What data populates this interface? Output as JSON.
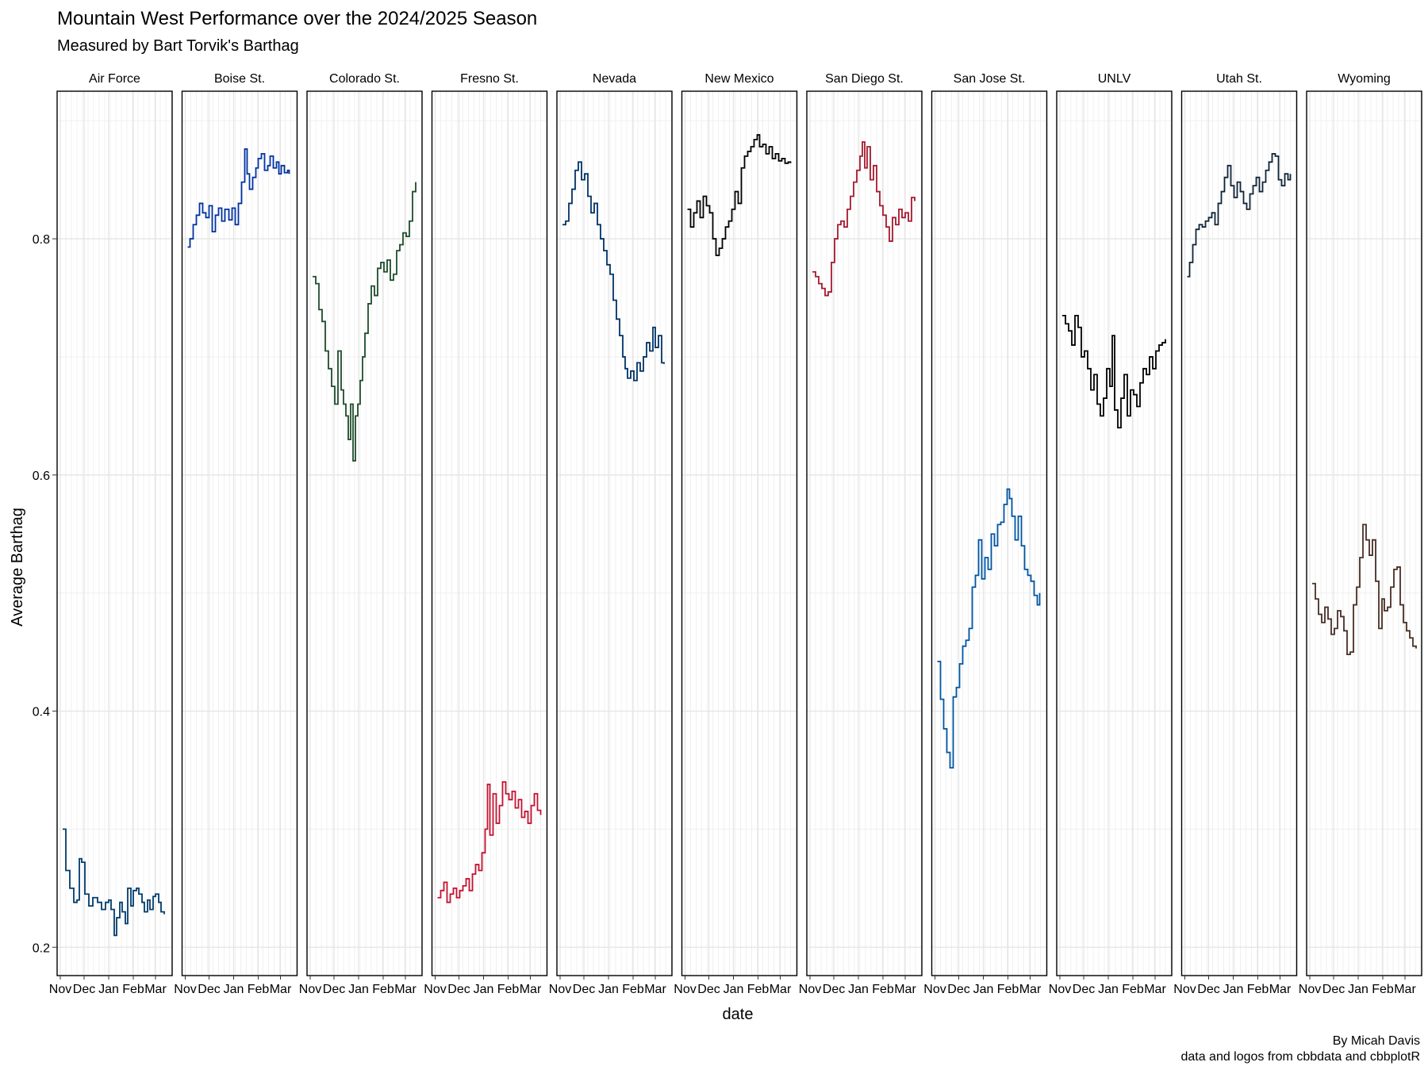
{
  "chart_data": {
    "type": "line",
    "title": "Mountain West Performance over the 2024/2025 Season",
    "subtitle": "Measured by Bart Torvik's Barthag",
    "xlabel": "date",
    "ylabel": "Average Barthag",
    "caption": [
      "By Micah Davis",
      "data and logos from cbbdata and cbbplotR"
    ],
    "ylim": [
      0.176,
      0.925
    ],
    "yticks": [
      0.2,
      0.4,
      0.6,
      0.8
    ],
    "ytick_labels": [
      "0.2",
      "0.4",
      "0.6",
      "0.8"
    ],
    "xlim": [
      "2024-10-28",
      "2025-03-22"
    ],
    "xticks": [
      "2024-11-01",
      "2024-12-01",
      "2025-01-01",
      "2025-02-01",
      "2025-03-01"
    ],
    "xtick_labels": [
      "Nov",
      "Dec",
      "Jan",
      "Feb",
      "Mar"
    ],
    "grid": true,
    "legend": "none",
    "facets": [
      {
        "name": "Air Force",
        "color": "#003C6C",
        "x": [
          "2024-11-04",
          "2024-11-08",
          "2024-11-13",
          "2024-11-18",
          "2024-11-22",
          "2024-11-25",
          "2024-11-28",
          "2024-12-02",
          "2024-12-07",
          "2024-12-12",
          "2024-12-18",
          "2024-12-23",
          "2024-12-28",
          "2025-01-01",
          "2025-01-04",
          "2025-01-08",
          "2025-01-11",
          "2025-01-15",
          "2025-01-18",
          "2025-01-22",
          "2025-01-25",
          "2025-01-29",
          "2025-02-01",
          "2025-02-05",
          "2025-02-08",
          "2025-02-12",
          "2025-02-15",
          "2025-02-19",
          "2025-02-22",
          "2025-02-26",
          "2025-03-01",
          "2025-03-05",
          "2025-03-08",
          "2025-03-12"
        ],
        "values": [
          0.3,
          0.265,
          0.25,
          0.238,
          0.24,
          0.275,
          0.272,
          0.245,
          0.235,
          0.242,
          0.238,
          0.232,
          0.238,
          0.24,
          0.232,
          0.21,
          0.225,
          0.238,
          0.23,
          0.22,
          0.25,
          0.235,
          0.248,
          0.25,
          0.245,
          0.238,
          0.23,
          0.24,
          0.232,
          0.243,
          0.245,
          0.238,
          0.23,
          0.228
        ]
      },
      {
        "name": "Boise St.",
        "color": "#0033A0",
        "x": [
          "2024-11-04",
          "2024-11-07",
          "2024-11-11",
          "2024-11-15",
          "2024-11-19",
          "2024-11-23",
          "2024-11-27",
          "2024-12-01",
          "2024-12-05",
          "2024-12-09",
          "2024-12-13",
          "2024-12-17",
          "2024-12-21",
          "2024-12-26",
          "2024-12-30",
          "2025-01-03",
          "2025-01-07",
          "2025-01-11",
          "2025-01-15",
          "2025-01-18",
          "2025-01-21",
          "2025-01-25",
          "2025-01-29",
          "2025-02-01",
          "2025-02-05",
          "2025-02-09",
          "2025-02-13",
          "2025-02-16",
          "2025-02-20",
          "2025-02-24",
          "2025-02-27",
          "2025-03-02",
          "2025-03-06",
          "2025-03-10",
          "2025-03-12"
        ],
        "values": [
          0.793,
          0.8,
          0.812,
          0.82,
          0.83,
          0.822,
          0.818,
          0.828,
          0.806,
          0.82,
          0.826,
          0.815,
          0.825,
          0.816,
          0.826,
          0.812,
          0.83,
          0.848,
          0.876,
          0.855,
          0.842,
          0.852,
          0.86,
          0.868,
          0.872,
          0.858,
          0.862,
          0.87,
          0.86,
          0.865,
          0.855,
          0.862,
          0.856,
          0.858,
          0.855
        ]
      },
      {
        "name": "Colorado St.",
        "color": "#1E4D2B",
        "x": [
          "2024-11-04",
          "2024-11-08",
          "2024-11-12",
          "2024-11-16",
          "2024-11-20",
          "2024-11-24",
          "2024-11-28",
          "2024-12-02",
          "2024-12-06",
          "2024-12-10",
          "2024-12-13",
          "2024-12-16",
          "2024-12-19",
          "2024-12-22",
          "2024-12-25",
          "2024-12-28",
          "2024-12-31",
          "2025-01-03",
          "2025-01-06",
          "2025-01-09",
          "2025-01-13",
          "2025-01-17",
          "2025-01-21",
          "2025-01-25",
          "2025-01-29",
          "2025-02-02",
          "2025-02-06",
          "2025-02-10",
          "2025-02-14",
          "2025-02-18",
          "2025-02-22",
          "2025-02-26",
          "2025-03-02",
          "2025-03-06",
          "2025-03-10",
          "2025-03-14"
        ],
        "values": [
          0.768,
          0.762,
          0.74,
          0.73,
          0.705,
          0.69,
          0.675,
          0.66,
          0.705,
          0.672,
          0.66,
          0.65,
          0.63,
          0.66,
          0.612,
          0.65,
          0.66,
          0.68,
          0.7,
          0.72,
          0.745,
          0.76,
          0.752,
          0.775,
          0.78,
          0.772,
          0.782,
          0.765,
          0.77,
          0.79,
          0.795,
          0.805,
          0.802,
          0.815,
          0.84,
          0.848
        ]
      },
      {
        "name": "Fresno St.",
        "color": "#C41230",
        "x": [
          "2024-11-04",
          "2024-11-08",
          "2024-11-12",
          "2024-11-16",
          "2024-11-20",
          "2024-11-24",
          "2024-11-28",
          "2024-12-02",
          "2024-12-06",
          "2024-12-10",
          "2024-12-14",
          "2024-12-18",
          "2024-12-22",
          "2024-12-26",
          "2024-12-30",
          "2025-01-03",
          "2025-01-06",
          "2025-01-09",
          "2025-01-13",
          "2025-01-17",
          "2025-01-21",
          "2025-01-25",
          "2025-01-29",
          "2025-02-02",
          "2025-02-06",
          "2025-02-10",
          "2025-02-14",
          "2025-02-18",
          "2025-02-22",
          "2025-02-26",
          "2025-03-02",
          "2025-03-06",
          "2025-03-10",
          "2025-03-14"
        ],
        "values": [
          0.242,
          0.248,
          0.255,
          0.238,
          0.245,
          0.25,
          0.242,
          0.248,
          0.252,
          0.258,
          0.248,
          0.262,
          0.27,
          0.265,
          0.28,
          0.3,
          0.338,
          0.295,
          0.33,
          0.305,
          0.32,
          0.34,
          0.33,
          0.325,
          0.332,
          0.318,
          0.325,
          0.31,
          0.315,
          0.305,
          0.32,
          0.33,
          0.316,
          0.312
        ]
      },
      {
        "name": "Nevada",
        "color": "#003366",
        "x": [
          "2024-11-04",
          "2024-11-08",
          "2024-11-12",
          "2024-11-16",
          "2024-11-20",
          "2024-11-24",
          "2024-11-28",
          "2024-12-02",
          "2024-12-06",
          "2024-12-10",
          "2024-12-14",
          "2024-12-18",
          "2024-12-22",
          "2024-12-26",
          "2024-12-30",
          "2025-01-03",
          "2025-01-07",
          "2025-01-11",
          "2025-01-15",
          "2025-01-19",
          "2025-01-22",
          "2025-01-25",
          "2025-01-29",
          "2025-02-02",
          "2025-02-06",
          "2025-02-10",
          "2025-02-14",
          "2025-02-18",
          "2025-02-22",
          "2025-02-26",
          "2025-03-01",
          "2025-03-05",
          "2025-03-09",
          "2025-03-12"
        ],
        "values": [
          0.812,
          0.815,
          0.83,
          0.842,
          0.858,
          0.865,
          0.85,
          0.855,
          0.836,
          0.822,
          0.83,
          0.812,
          0.8,
          0.79,
          0.778,
          0.77,
          0.748,
          0.732,
          0.718,
          0.7,
          0.69,
          0.682,
          0.688,
          0.68,
          0.695,
          0.688,
          0.7,
          0.712,
          0.705,
          0.725,
          0.708,
          0.718,
          0.695,
          0.694
        ]
      },
      {
        "name": "New Mexico",
        "color": "#000000",
        "x": [
          "2024-11-04",
          "2024-11-08",
          "2024-11-12",
          "2024-11-16",
          "2024-11-20",
          "2024-11-24",
          "2024-11-28",
          "2024-12-02",
          "2024-12-06",
          "2024-12-10",
          "2024-12-14",
          "2024-12-18",
          "2024-12-22",
          "2024-12-26",
          "2024-12-30",
          "2025-01-03",
          "2025-01-07",
          "2025-01-11",
          "2025-01-15",
          "2025-01-19",
          "2025-01-23",
          "2025-01-27",
          "2025-01-31",
          "2025-02-03",
          "2025-02-07",
          "2025-02-11",
          "2025-02-15",
          "2025-02-19",
          "2025-02-23",
          "2025-02-27",
          "2025-03-03",
          "2025-03-07",
          "2025-03-11",
          "2025-03-14"
        ],
        "values": [
          0.825,
          0.81,
          0.822,
          0.832,
          0.818,
          0.836,
          0.828,
          0.822,
          0.8,
          0.786,
          0.792,
          0.8,
          0.81,
          0.815,
          0.825,
          0.84,
          0.83,
          0.86,
          0.87,
          0.874,
          0.878,
          0.884,
          0.888,
          0.878,
          0.88,
          0.872,
          0.878,
          0.868,
          0.872,
          0.866,
          0.868,
          0.864,
          0.865,
          0.864
        ]
      },
      {
        "name": "San Diego St.",
        "color": "#A6192E",
        "x": [
          "2024-11-04",
          "2024-11-08",
          "2024-11-12",
          "2024-11-16",
          "2024-11-20",
          "2024-11-24",
          "2024-11-28",
          "2024-12-02",
          "2024-12-06",
          "2024-12-10",
          "2024-12-14",
          "2024-12-18",
          "2024-12-22",
          "2024-12-26",
          "2024-12-30",
          "2025-01-03",
          "2025-01-06",
          "2025-01-09",
          "2025-01-12",
          "2025-01-16",
          "2025-01-20",
          "2025-01-24",
          "2025-01-28",
          "2025-02-01",
          "2025-02-05",
          "2025-02-09",
          "2025-02-13",
          "2025-02-17",
          "2025-02-21",
          "2025-02-25",
          "2025-03-01",
          "2025-03-05",
          "2025-03-09",
          "2025-03-13"
        ],
        "values": [
          0.772,
          0.768,
          0.762,
          0.758,
          0.752,
          0.755,
          0.78,
          0.8,
          0.812,
          0.815,
          0.81,
          0.825,
          0.836,
          0.848,
          0.858,
          0.87,
          0.882,
          0.86,
          0.878,
          0.85,
          0.862,
          0.84,
          0.828,
          0.82,
          0.81,
          0.798,
          0.818,
          0.812,
          0.825,
          0.818,
          0.822,
          0.815,
          0.835,
          0.832
        ]
      },
      {
        "name": "San Jose St.",
        "color": "#0055A2",
        "x": [
          "2024-11-04",
          "2024-11-08",
          "2024-11-12",
          "2024-11-16",
          "2024-11-20",
          "2024-11-24",
          "2024-11-28",
          "2024-12-02",
          "2024-12-06",
          "2024-12-10",
          "2024-12-14",
          "2024-12-18",
          "2024-12-22",
          "2024-12-26",
          "2024-12-30",
          "2025-01-03",
          "2025-01-07",
          "2025-01-11",
          "2025-01-15",
          "2025-01-19",
          "2025-01-23",
          "2025-01-27",
          "2025-01-31",
          "2025-02-03",
          "2025-02-06",
          "2025-02-10",
          "2025-02-14",
          "2025-02-18",
          "2025-02-22",
          "2025-02-26",
          "2025-03-02",
          "2025-03-06",
          "2025-03-10",
          "2025-03-13"
        ],
        "values": [
          0.442,
          0.41,
          0.385,
          0.365,
          0.352,
          0.412,
          0.42,
          0.44,
          0.455,
          0.46,
          0.47,
          0.505,
          0.515,
          0.545,
          0.512,
          0.53,
          0.52,
          0.55,
          0.54,
          0.558,
          0.56,
          0.575,
          0.588,
          0.58,
          0.565,
          0.545,
          0.565,
          0.54,
          0.52,
          0.515,
          0.51,
          0.498,
          0.49,
          0.5
        ]
      },
      {
        "name": "UNLV",
        "color": "#000000",
        "x": [
          "2024-11-04",
          "2024-11-08",
          "2024-11-12",
          "2024-11-16",
          "2024-11-20",
          "2024-11-24",
          "2024-11-28",
          "2024-12-02",
          "2024-12-06",
          "2024-12-10",
          "2024-12-14",
          "2024-12-18",
          "2024-12-22",
          "2024-12-26",
          "2024-12-30",
          "2025-01-03",
          "2025-01-06",
          "2025-01-09",
          "2025-01-13",
          "2025-01-17",
          "2025-01-21",
          "2025-01-25",
          "2025-01-29",
          "2025-02-02",
          "2025-02-06",
          "2025-02-10",
          "2025-02-14",
          "2025-02-18",
          "2025-02-22",
          "2025-02-26",
          "2025-03-02",
          "2025-03-06",
          "2025-03-10",
          "2025-03-14"
        ],
        "values": [
          0.735,
          0.728,
          0.722,
          0.71,
          0.735,
          0.725,
          0.7,
          0.705,
          0.69,
          0.672,
          0.685,
          0.66,
          0.65,
          0.665,
          0.69,
          0.675,
          0.718,
          0.655,
          0.64,
          0.665,
          0.685,
          0.65,
          0.672,
          0.668,
          0.658,
          0.678,
          0.69,
          0.685,
          0.7,
          0.69,
          0.705,
          0.71,
          0.712,
          0.715
        ]
      },
      {
        "name": "Utah St.",
        "color": "#0F2439",
        "x": [
          "2024-11-04",
          "2024-11-07",
          "2024-11-11",
          "2024-11-15",
          "2024-11-19",
          "2024-11-23",
          "2024-11-27",
          "2024-12-01",
          "2024-12-05",
          "2024-12-09",
          "2024-12-13",
          "2024-12-17",
          "2024-12-21",
          "2024-12-25",
          "2024-12-29",
          "2025-01-02",
          "2025-01-06",
          "2025-01-10",
          "2025-01-14",
          "2025-01-18",
          "2025-01-22",
          "2025-01-26",
          "2025-01-30",
          "2025-02-03",
          "2025-02-07",
          "2025-02-11",
          "2025-02-15",
          "2025-02-19",
          "2025-02-23",
          "2025-02-27",
          "2025-03-03",
          "2025-03-07",
          "2025-03-11",
          "2025-03-14"
        ],
        "values": [
          0.768,
          0.78,
          0.795,
          0.808,
          0.812,
          0.81,
          0.815,
          0.818,
          0.822,
          0.812,
          0.83,
          0.84,
          0.852,
          0.862,
          0.845,
          0.835,
          0.848,
          0.84,
          0.83,
          0.825,
          0.838,
          0.845,
          0.852,
          0.84,
          0.848,
          0.858,
          0.865,
          0.872,
          0.87,
          0.85,
          0.845,
          0.855,
          0.85,
          0.855
        ]
      },
      {
        "name": "Wyoming",
        "color": "#492F24",
        "x": [
          "2024-11-04",
          "2024-11-08",
          "2024-11-12",
          "2024-11-16",
          "2024-11-20",
          "2024-11-24",
          "2024-11-28",
          "2024-12-02",
          "2024-12-06",
          "2024-12-10",
          "2024-12-14",
          "2024-12-18",
          "2024-12-22",
          "2024-12-26",
          "2024-12-30",
          "2025-01-03",
          "2025-01-07",
          "2025-01-11",
          "2025-01-15",
          "2025-01-19",
          "2025-01-23",
          "2025-01-27",
          "2025-01-31",
          "2025-02-03",
          "2025-02-07",
          "2025-02-11",
          "2025-02-15",
          "2025-02-19",
          "2025-02-23",
          "2025-02-27",
          "2025-03-03",
          "2025-03-07",
          "2025-03-11",
          "2025-03-15"
        ],
        "values": [
          0.508,
          0.495,
          0.482,
          0.475,
          0.488,
          0.478,
          0.465,
          0.47,
          0.485,
          0.48,
          0.468,
          0.448,
          0.45,
          0.49,
          0.505,
          0.53,
          0.558,
          0.545,
          0.532,
          0.545,
          0.51,
          0.47,
          0.495,
          0.485,
          0.488,
          0.505,
          0.52,
          0.522,
          0.49,
          0.475,
          0.468,
          0.462,
          0.455,
          0.453
        ]
      }
    ]
  }
}
